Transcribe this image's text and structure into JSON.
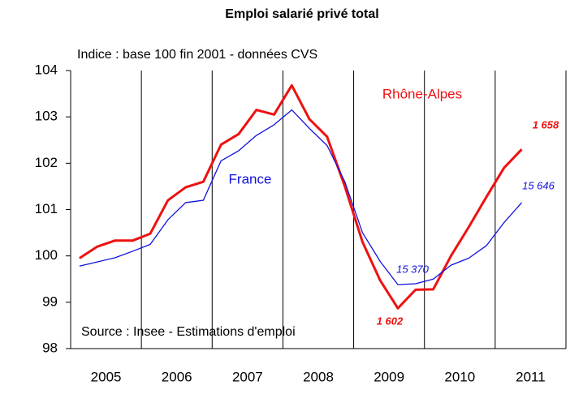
{
  "chart_data": {
    "type": "line",
    "title": "Emploi salarié privé total",
    "subtitle": "Indice : base 100 fin 2001 - données CVS",
    "source": "Source : Insee - Estimations d'emploi",
    "x": [
      2005.125,
      2005.375,
      2005.625,
      2005.875,
      2006.125,
      2006.375,
      2006.625,
      2006.875,
      2007.125,
      2007.375,
      2007.625,
      2007.875,
      2008.125,
      2008.375,
      2008.625,
      2008.875,
      2009.125,
      2009.375,
      2009.625,
      2009.875,
      2010.125,
      2010.375,
      2010.625,
      2010.875,
      2011.125,
      2011.375
    ],
    "series": [
      {
        "name": "Rhône-Alpes",
        "color": "#ee1111",
        "width": 3,
        "values": [
          99.95,
          100.2,
          100.33,
          100.33,
          100.48,
          101.2,
          101.48,
          101.6,
          102.4,
          102.63,
          103.15,
          103.05,
          103.68,
          102.95,
          102.57,
          101.5,
          100.3,
          99.47,
          98.87,
          99.27,
          99.28,
          100.0,
          100.62,
          101.27,
          101.9,
          102.3
        ]
      },
      {
        "name": "France",
        "color": "#1111dd",
        "width": 1.3,
        "values": [
          99.78,
          99.87,
          99.96,
          100.1,
          100.25,
          100.78,
          101.15,
          101.2,
          102.05,
          102.27,
          102.6,
          102.83,
          103.15,
          102.75,
          102.38,
          101.6,
          100.5,
          99.88,
          99.38,
          99.4,
          99.5,
          99.8,
          99.95,
          100.22,
          100.72,
          101.15
        ]
      }
    ],
    "annotations": [
      {
        "text": "1 658",
        "color": "#ee1111",
        "bold": true
      },
      {
        "text": "15 646",
        "color": "#1111dd",
        "bold": false
      },
      {
        "text": "15 370",
        "color": "#1111dd",
        "bold": false
      },
      {
        "text": "1 602",
        "color": "#ee1111",
        "bold": true
      }
    ],
    "xlim": [
      2005,
      2012
    ],
    "xticks": [
      {
        "value": 2005.5,
        "label": "2005"
      },
      {
        "value": 2006.5,
        "label": "2006"
      },
      {
        "value": 2007.5,
        "label": "2007"
      },
      {
        "value": 2008.5,
        "label": "2008"
      },
      {
        "value": 2009.5,
        "label": "2009"
      },
      {
        "value": 2010.5,
        "label": "2010"
      },
      {
        "value": 2011.5,
        "label": "2011"
      }
    ],
    "ylim": [
      98,
      104
    ],
    "yticks": [
      98,
      99,
      100,
      101,
      102,
      103,
      104
    ]
  }
}
